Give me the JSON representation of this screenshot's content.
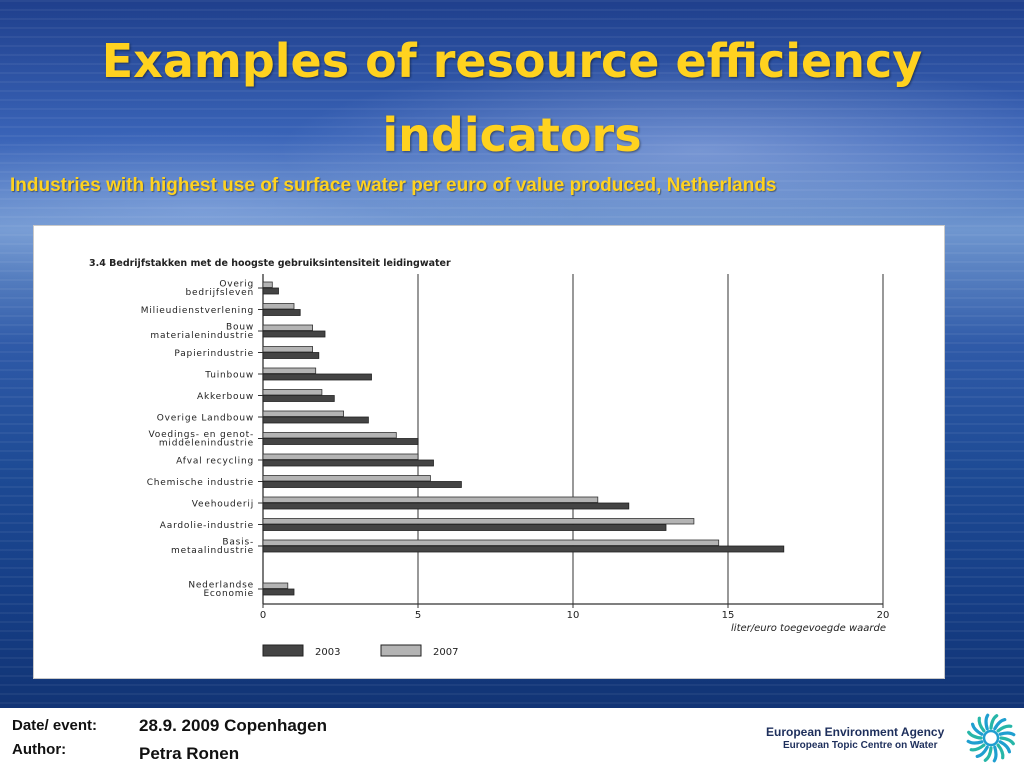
{
  "slide": {
    "title_line1": "Examples of resource efficiency",
    "title_line2": "indicators",
    "subtitle": "Industries with highest use of surface water per euro of value produced, Netherlands"
  },
  "chart_data": {
    "type": "bar",
    "orientation": "horizontal",
    "title": "3.4 Bedrijfstakken met de hoogste gebruiksintensiteit leidingwater",
    "xlabel": "liter/euro toegevoegde waarde",
    "xlim": [
      0,
      20
    ],
    "xticks": [
      0,
      5,
      10,
      15,
      20
    ],
    "grid": true,
    "legend_position": "bottom-left",
    "categories": [
      "Overig bedrijfsleven",
      "Milieudienstverlening",
      "Bouw materialenindustrie",
      "Papierindustrie",
      "Tuinbouw",
      "Akkerbouw",
      "Overige Landbouw",
      "Voedings- en genot-middelenindustrie",
      "Afval recycling",
      "Chemische industrie",
      "Veehouderij",
      "Aardolie-industrie",
      "Basis-metaalindustrie",
      "Nederlandse Economie"
    ],
    "category_label_lines": [
      [
        "Overig",
        "bedrijfsleven"
      ],
      [
        "Milieudienstverlening"
      ],
      [
        "Bouw",
        "materialenindustrie"
      ],
      [
        "Papierindustrie"
      ],
      [
        "Tuinbouw"
      ],
      [
        "Akkerbouw"
      ],
      [
        "Overige Landbouw"
      ],
      [
        "Voedings- en genot-",
        "middelenindustrie"
      ],
      [
        "Afval recycling"
      ],
      [
        "Chemische industrie"
      ],
      [
        "Veehouderij"
      ],
      [
        "Aardolie-industrie"
      ],
      [
        "Basis-",
        "metaalindustrie"
      ],
      [
        "Nederlandse",
        "Economie"
      ]
    ],
    "series": [
      {
        "name": "2003",
        "color": "#444444",
        "values": [
          0.5,
          1.2,
          2.0,
          1.8,
          3.5,
          2.3,
          3.4,
          5.0,
          5.5,
          6.4,
          11.8,
          13.0,
          16.8,
          1.0
        ]
      },
      {
        "name": "2007",
        "color": "#b4b4b4",
        "values": [
          0.3,
          1.0,
          1.6,
          1.6,
          1.7,
          1.9,
          2.6,
          4.3,
          5.0,
          5.4,
          10.8,
          13.9,
          14.7,
          0.8
        ]
      }
    ]
  },
  "footer": {
    "date_label": "Date/ event:",
    "date_value": "28.9. 2009 Copenhagen",
    "author_label": "Author:",
    "author_value": "Petra Ronen",
    "agency_name": "European Environment Agency",
    "agency_sub": "European Topic Centre on Water"
  }
}
